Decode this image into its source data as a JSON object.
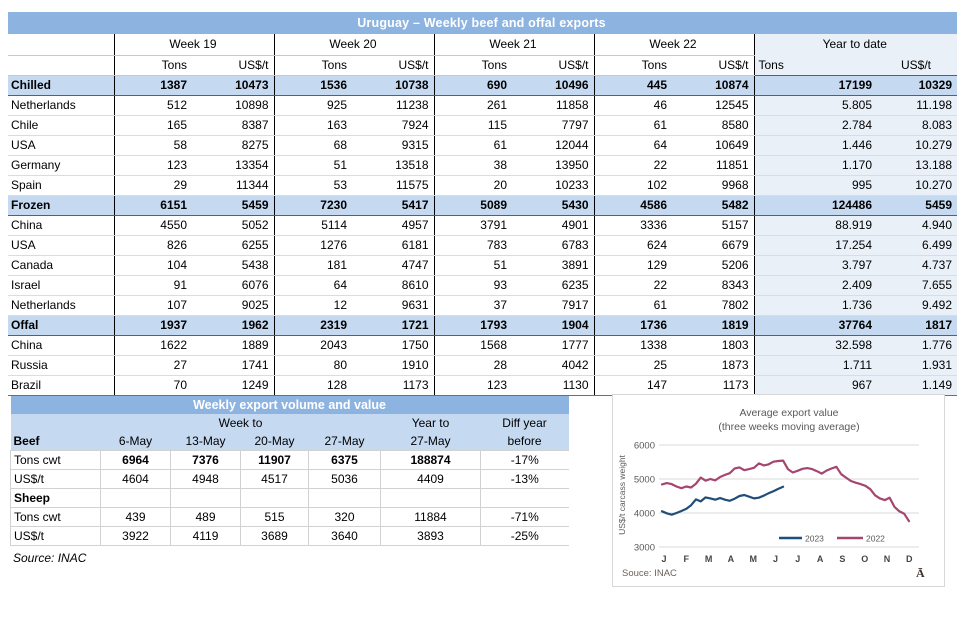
{
  "colors": {
    "header_blue": "#8DB3E0",
    "section_blue": "#C5D9F1",
    "ytd_bg": "#EAF0F8",
    "line_2023": "#1F4E79",
    "line_2022": "#A6456F"
  },
  "table1": {
    "title": "Uruguay – Weekly beef and offal exports",
    "week_headers": [
      "Week 19",
      "Week 20",
      "Week 21",
      "Week 22"
    ],
    "ytd_header": "Year to date",
    "sub": {
      "tons": "Tons",
      "usd": "US$/t"
    },
    "rows": [
      {
        "label": "Chilled",
        "type": "section",
        "values": [
          "1387",
          "10473",
          "1536",
          "10738",
          "690",
          "10496",
          "445",
          "10874",
          "17199",
          "10329"
        ]
      },
      {
        "label": "Netherlands",
        "type": "country",
        "values": [
          "512",
          "10898",
          "925",
          "11238",
          "261",
          "11858",
          "46",
          "12545",
          "5.805",
          "11.198"
        ]
      },
      {
        "label": "Chile",
        "type": "country",
        "values": [
          "165",
          "8387",
          "163",
          "7924",
          "115",
          "7797",
          "61",
          "8580",
          "2.784",
          "8.083"
        ]
      },
      {
        "label": "USA",
        "type": "country",
        "values": [
          "58",
          "8275",
          "68",
          "9315",
          "61",
          "12044",
          "64",
          "10649",
          "1.446",
          "10.279"
        ]
      },
      {
        "label": "Germany",
        "type": "country",
        "values": [
          "123",
          "13354",
          "51",
          "13518",
          "38",
          "13950",
          "22",
          "11851",
          "1.170",
          "13.188"
        ]
      },
      {
        "label": "Spain",
        "type": "country",
        "values": [
          "29",
          "11344",
          "53",
          "11575",
          "20",
          "10233",
          "102",
          "9968",
          "995",
          "10.270"
        ]
      },
      {
        "label": "Frozen",
        "type": "section",
        "values": [
          "6151",
          "5459",
          "7230",
          "5417",
          "5089",
          "5430",
          "4586",
          "5482",
          "124486",
          "5459"
        ]
      },
      {
        "label": "China",
        "type": "country",
        "values": [
          "4550",
          "5052",
          "5114",
          "4957",
          "3791",
          "4901",
          "3336",
          "5157",
          "88.919",
          "4.940"
        ]
      },
      {
        "label": "USA",
        "type": "country",
        "values": [
          "826",
          "6255",
          "1276",
          "6181",
          "783",
          "6783",
          "624",
          "6679",
          "17.254",
          "6.499"
        ]
      },
      {
        "label": "Canada",
        "type": "country",
        "values": [
          "104",
          "5438",
          "181",
          "4747",
          "51",
          "3891",
          "129",
          "5206",
          "3.797",
          "4.737"
        ]
      },
      {
        "label": "Israel",
        "type": "country",
        "values": [
          "91",
          "6076",
          "64",
          "8610",
          "93",
          "6235",
          "22",
          "8343",
          "2.409",
          "7.655"
        ]
      },
      {
        "label": "Netherlands",
        "type": "country",
        "values": [
          "107",
          "9025",
          "12",
          "9631",
          "37",
          "7917",
          "61",
          "7802",
          "1.736",
          "9.492"
        ]
      },
      {
        "label": "Offal",
        "type": "section",
        "values": [
          "1937",
          "1962",
          "2319",
          "1721",
          "1793",
          "1904",
          "1736",
          "1819",
          "37764",
          "1817"
        ]
      },
      {
        "label": "China",
        "type": "country",
        "values": [
          "1622",
          "1889",
          "2043",
          "1750",
          "1568",
          "1777",
          "1338",
          "1803",
          "32.598",
          "1.776"
        ]
      },
      {
        "label": "Russia",
        "type": "country",
        "values": [
          "27",
          "1741",
          "80",
          "1910",
          "28",
          "4042",
          "25",
          "1873",
          "1.711",
          "1.931"
        ]
      },
      {
        "label": "Brazil",
        "type": "country",
        "values": [
          "70",
          "1249",
          "128",
          "1173",
          "123",
          "1130",
          "147",
          "1173",
          "967",
          "1.149"
        ]
      }
    ]
  },
  "table2": {
    "title": "Weekly export volume and value",
    "group_headers": {
      "week_to": "Week to",
      "year_to": "Year to",
      "diff": "Diff year"
    },
    "columns": [
      "6-May",
      "13-May",
      "20-May",
      "27-May",
      "27-May",
      "before"
    ],
    "first_section_label": "Beef",
    "beef_rows": [
      {
        "label": "Tons cwt",
        "bold": true,
        "values": [
          "6964",
          "7376",
          "11907",
          "6375",
          "188874",
          "-17%"
        ]
      },
      {
        "label": "US$/t",
        "bold": false,
        "values": [
          "4604",
          "4948",
          "4517",
          "5036",
          "4409",
          "-13%"
        ]
      }
    ],
    "sheep_label": "Sheep",
    "sheep_rows": [
      {
        "label": "Tons cwt",
        "bold": false,
        "values": [
          "439",
          "489",
          "515",
          "320",
          "11884",
          "-71%"
        ]
      },
      {
        "label": "US$/t",
        "bold": false,
        "values": [
          "3922",
          "4119",
          "3689",
          "3640",
          "3893",
          "-25%"
        ]
      }
    ],
    "source": "Source: INAC"
  },
  "chart_data": {
    "type": "line",
    "title": "Average export value",
    "subtitle": "(three weeks moving average)",
    "ylabel": "US$/t carcass weight",
    "ylim": [
      3000,
      6000
    ],
    "y_ticks": [
      6000,
      5000,
      4000,
      3000
    ],
    "x_labels": [
      "J",
      "F",
      "M",
      "A",
      "M",
      "J",
      "J",
      "A",
      "S",
      "O",
      "N",
      "D"
    ],
    "grid": true,
    "legend_position": "bottom-center",
    "series": [
      {
        "name": "2023",
        "color": "#1F4E79",
        "values": [
          4050,
          3990,
          3950,
          4000,
          4060,
          4120,
          4230,
          4400,
          4340,
          4460,
          4430,
          4390,
          4440,
          4390,
          4360,
          4420,
          4500,
          4530,
          4480,
          4430,
          4450,
          4510,
          4580,
          4640,
          4710,
          4770
        ]
      },
      {
        "name": "2022",
        "color": "#A6456F",
        "values": [
          4840,
          4880,
          4850,
          4780,
          4730,
          4780,
          4750,
          4860,
          5040,
          4950,
          5000,
          4960,
          5060,
          5120,
          5170,
          5310,
          5340,
          5260,
          5290,
          5330,
          5460,
          5400,
          5430,
          5510,
          5530,
          5540,
          5290,
          5190,
          5240,
          5300,
          5320,
          5290,
          5230,
          5160,
          5250,
          5310,
          5360,
          5140,
          5040,
          4940,
          4890,
          4850,
          4800,
          4700,
          4520,
          4430,
          4380,
          4450,
          4180,
          4050,
          3980,
          3760
        ]
      }
    ],
    "source": "Souce: INAC",
    "watermark": "Ā"
  }
}
